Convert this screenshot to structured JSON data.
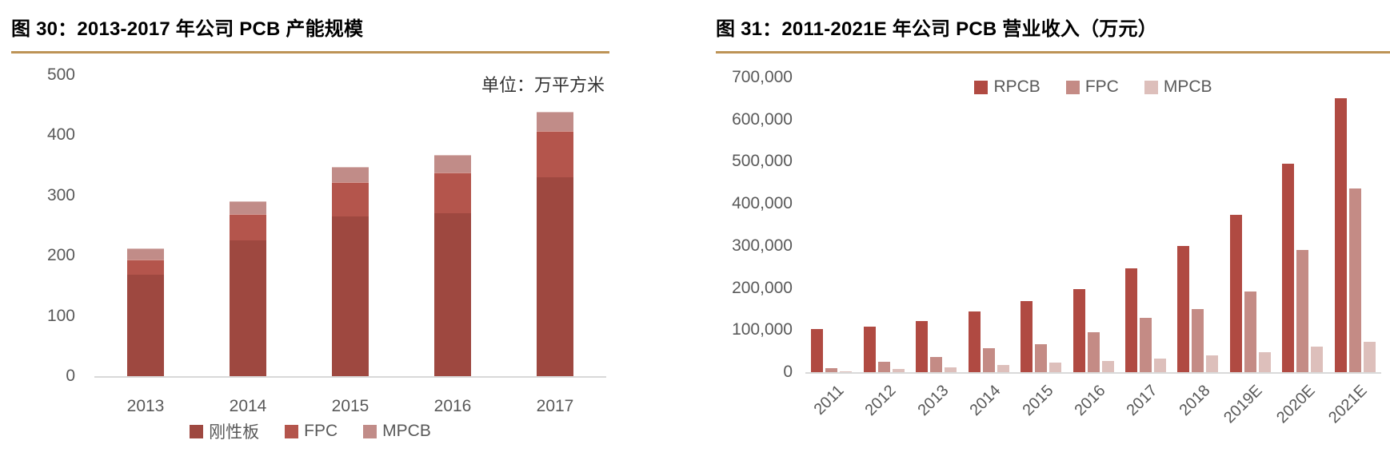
{
  "colors": {
    "gold_rule": "#BD9356",
    "axis_line": "#D9D9D9",
    "tick_text": "#595959",
    "title_text": "#000000"
  },
  "chart_data": [
    {
      "id": "fig30",
      "type": "bar",
      "stacked": true,
      "title": "图 30：2013-2017 年公司 PCB 产能规模",
      "unit_note": "单位：万平方米",
      "categories": [
        "2013",
        "2014",
        "2015",
        "2016",
        "2017"
      ],
      "series": [
        {
          "name": "刚性板",
          "color": "#9E4840",
          "values": [
            168,
            225,
            265,
            270,
            330
          ]
        },
        {
          "name": "FPC",
          "color": "#B4554C",
          "values": [
            26,
            44,
            57,
            68,
            77
          ]
        },
        {
          "name": "MPCB",
          "color": "#C18C88",
          "values": [
            18,
            21,
            26,
            30,
            32
          ]
        }
      ],
      "ylim": [
        0,
        500
      ],
      "ytick_step": 100,
      "ytick_labels": [
        "0",
        "100",
        "200",
        "300",
        "400",
        "500"
      ],
      "legend_position": "bottom",
      "grid": false
    },
    {
      "id": "fig31",
      "type": "bar",
      "stacked": false,
      "title": "图 31：2011-2021E 年公司 PCB 营业收入（万元）",
      "categories": [
        "2011",
        "2012",
        "2013",
        "2014",
        "2015",
        "2016",
        "2017",
        "2018",
        "2019E",
        "2020E",
        "2021E"
      ],
      "series": [
        {
          "name": "RPCB",
          "color": "#B04A42",
          "values": [
            103000,
            108000,
            122000,
            145000,
            169000,
            198000,
            247000,
            300000,
            374000,
            495000,
            650000
          ]
        },
        {
          "name": "FPC",
          "color": "#C48B85",
          "values": [
            9500,
            24000,
            36000,
            57000,
            67000,
            94000,
            129000,
            149000,
            192000,
            291000,
            437000
          ]
        },
        {
          "name": "MPCB",
          "color": "#DDBFBB",
          "values": [
            2000,
            7500,
            11000,
            17000,
            23000,
            26000,
            32000,
            40000,
            48000,
            60000,
            72000
          ]
        }
      ],
      "ylim": [
        0,
        700000
      ],
      "ytick_step": 100000,
      "ytick_labels": [
        "0",
        "100,000",
        "200,000",
        "300,000",
        "400,000",
        "500,000",
        "600,000",
        "700,000"
      ],
      "legend_position": "top",
      "grid": false,
      "xlabel_rotation": -45
    }
  ]
}
